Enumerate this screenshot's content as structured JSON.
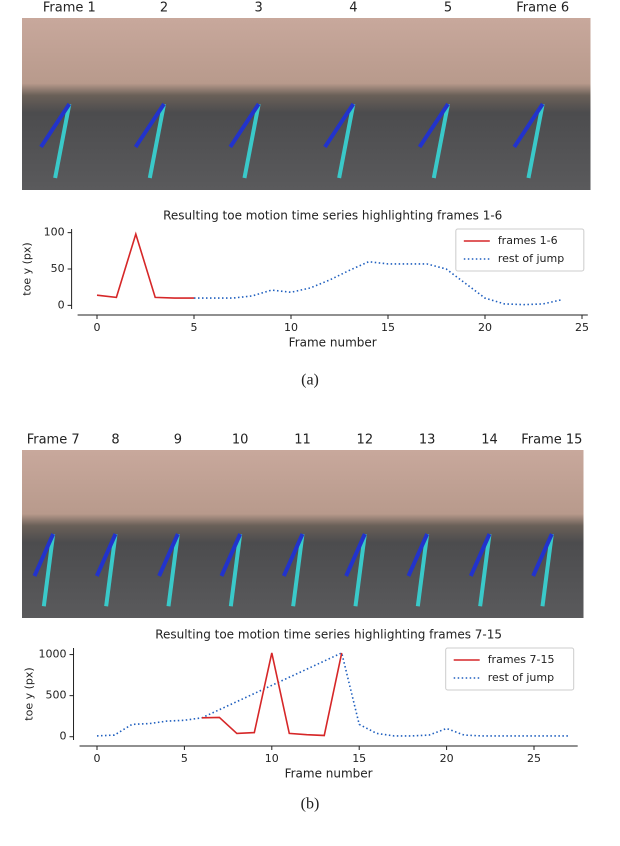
{
  "strips": [
    {
      "frame_labels": [
        "Frame 1",
        "2",
        "3",
        "4",
        "5",
        "Frame 6"
      ]
    },
    {
      "frame_labels": [
        "Frame 7",
        "8",
        "9",
        "10",
        "11",
        "12",
        "13",
        "14",
        "Frame 15"
      ]
    }
  ],
  "captions": [
    "(a)",
    "(b)"
  ],
  "chart_data": [
    {
      "type": "line",
      "title": "Resulting toe motion time series highlighting frames 1-6",
      "x_label": "Frame number",
      "y_label": "toe y (px)",
      "xlim": [
        -1,
        25.3
      ],
      "ylim": [
        -5,
        105
      ],
      "xticks": [
        0,
        5,
        10,
        15,
        20,
        25
      ],
      "yticks": [
        0,
        50,
        100
      ],
      "legend": "upper right",
      "series": [
        {
          "name": "frames 1-6",
          "color": "#d62728",
          "linestyle": "solid",
          "x": [
            0,
            1,
            2,
            3,
            4,
            5
          ],
          "values": [
            14,
            11,
            98,
            11,
            10,
            10
          ]
        },
        {
          "name": "rest of jump",
          "color": "#1f5fbf",
          "linestyle": "dotted",
          "x": [
            5,
            6,
            7,
            8,
            9,
            10,
            11,
            12,
            13,
            14,
            15,
            16,
            17,
            18,
            19,
            20,
            21,
            22,
            23,
            24
          ],
          "values": [
            10,
            10,
            10,
            13,
            21,
            18,
            24,
            35,
            48,
            60,
            57,
            57,
            57,
            50,
            30,
            10,
            2,
            1,
            2,
            8
          ]
        }
      ]
    },
    {
      "type": "line",
      "title": "Resulting toe motion time series highlighting frames 7-15",
      "x_label": "Frame number",
      "y_label": "toe y (px)",
      "xlim": [
        -1,
        27.5
      ],
      "ylim": [
        -40,
        1080
      ],
      "xticks": [
        0,
        5,
        10,
        15,
        20,
        25
      ],
      "yticks": [
        0,
        500,
        1000
      ],
      "legend": "upper right",
      "series": [
        {
          "name": "frames 7-15",
          "color": "#d62728",
          "linestyle": "solid",
          "x": [
            6,
            7,
            8,
            9,
            10,
            11,
            12,
            13,
            14
          ],
          "values": [
            230,
            235,
            40,
            50,
            1020,
            40,
            25,
            15,
            1020
          ]
        },
        {
          "name": "rest of jump",
          "color": "#1f5fbf",
          "linestyle": "dotted",
          "x": [
            0,
            1,
            2,
            3,
            4,
            5,
            6,
            14,
            15,
            16,
            17,
            18,
            19,
            20,
            21,
            22,
            23,
            24,
            25,
            26,
            27
          ],
          "values": [
            10,
            20,
            150,
            160,
            190,
            200,
            230,
            1020,
            150,
            40,
            10,
            10,
            20,
            100,
            20,
            10,
            10,
            10,
            10,
            10,
            10
          ]
        }
      ]
    }
  ]
}
